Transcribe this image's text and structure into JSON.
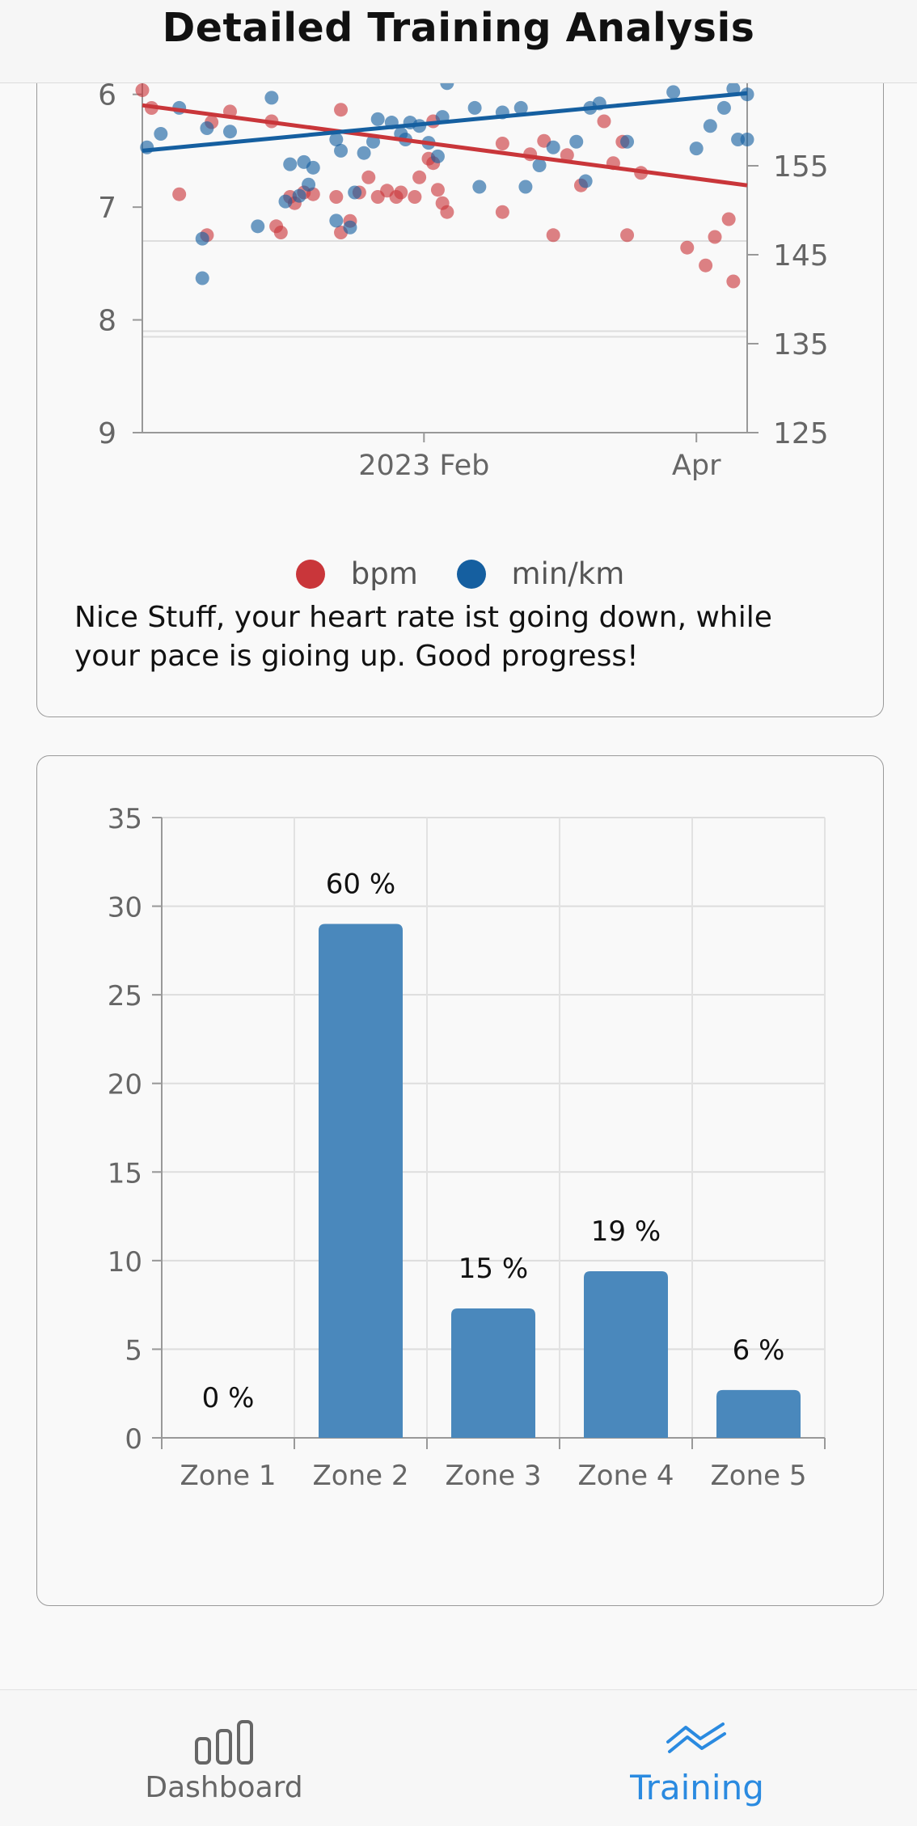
{
  "header": {
    "title": "Detailed Training Analysis"
  },
  "colors": {
    "bpm": "#c9363a",
    "pace": "#155fa0",
    "bar": "#4a88bc",
    "active_tab": "#2a8ae0"
  },
  "trend_card": {
    "legend": [
      {
        "label": "bpm",
        "color": "#c9363a"
      },
      {
        "label": "min/km",
        "color": "#155fa0"
      }
    ],
    "note": "Nice Stuff, your heart rate ist going down, while your pace is gioing up. Good progress!"
  },
  "zone_card": {},
  "chart_data": [
    {
      "type": "scatter",
      "x_ticks": [
        "2023 Feb",
        "Apr"
      ],
      "y_left_ticks": [
        "6",
        "7",
        "8",
        "9"
      ],
      "y_right_ticks": [
        "155",
        "145",
        "135",
        "125"
      ],
      "y_left_range": [
        5.45,
        9
      ],
      "y_right_range": [
        125,
        170
      ],
      "x_range": [
        "2022-12-02",
        "2023-04-12"
      ],
      "legend_placement": "bottom",
      "series": [
        {
          "name": "bpm",
          "axis": "right",
          "color": "#c9363a",
          "points": [
            [
              "2022-12-02",
              163.5
            ],
            [
              "2022-12-04",
              161.5
            ],
            [
              "2022-12-10",
              151.8
            ],
            [
              "2022-12-16",
              147.2
            ],
            [
              "2022-12-17",
              159.9
            ],
            [
              "2022-12-21",
              161.1
            ],
            [
              "2022-12-30",
              160.0
            ],
            [
              "2022-12-31",
              148.2
            ],
            [
              "2023-01-01",
              147.5
            ],
            [
              "2023-01-03",
              151.5
            ],
            [
              "2023-01-04",
              150.8
            ],
            [
              "2023-01-06",
              152.0
            ],
            [
              "2023-01-08",
              151.8
            ],
            [
              "2023-01-13",
              151.5
            ],
            [
              "2023-01-14",
              161.3
            ],
            [
              "2023-01-14",
              147.5
            ],
            [
              "2023-01-16",
              148.8
            ],
            [
              "2023-01-18",
              152.0
            ],
            [
              "2023-01-20",
              153.7
            ],
            [
              "2023-01-22",
              151.5
            ],
            [
              "2023-01-24",
              152.2
            ],
            [
              "2023-01-26",
              151.5
            ],
            [
              "2023-01-27",
              152.0
            ],
            [
              "2023-01-30",
              151.5
            ],
            [
              "2023-01-31",
              153.7
            ],
            [
              "2023-02-02",
              155.8
            ],
            [
              "2023-02-03",
              160.0
            ],
            [
              "2023-02-03",
              155.3
            ],
            [
              "2023-02-04",
              152.3
            ],
            [
              "2023-02-05",
              150.8
            ],
            [
              "2023-02-06",
              149.8
            ],
            [
              "2023-02-18",
              157.5
            ],
            [
              "2023-02-18",
              149.8
            ],
            [
              "2023-02-24",
              156.3
            ],
            [
              "2023-02-27",
              157.8
            ],
            [
              "2023-03-01",
              147.2
            ],
            [
              "2023-03-04",
              156.2
            ],
            [
              "2023-03-07",
              152.8
            ],
            [
              "2023-03-12",
              160.0
            ],
            [
              "2023-03-14",
              155.3
            ],
            [
              "2023-03-16",
              157.7
            ],
            [
              "2023-03-17",
              147.2
            ],
            [
              "2023-03-20",
              154.2
            ],
            [
              "2023-03-30",
              145.8
            ],
            [
              "2023-04-03",
              143.8
            ],
            [
              "2023-04-05",
              147.0
            ],
            [
              "2023-04-08",
              149.0
            ],
            [
              "2023-04-09",
              142.0
            ]
          ]
        },
        {
          "name": "min/km",
          "axis": "left",
          "color": "#155fa0",
          "points": [
            [
              "2022-12-03",
              6.47
            ],
            [
              "2022-12-06",
              6.35
            ],
            [
              "2022-12-10",
              6.12
            ],
            [
              "2022-12-13",
              5.78
            ],
            [
              "2022-12-15",
              7.28
            ],
            [
              "2022-12-15",
              7.63
            ],
            [
              "2022-12-16",
              6.3
            ],
            [
              "2022-12-18",
              5.77
            ],
            [
              "2022-12-21",
              6.33
            ],
            [
              "2022-12-27",
              7.17
            ],
            [
              "2022-12-30",
              6.03
            ],
            [
              "2023-01-02",
              6.95
            ],
            [
              "2023-01-03",
              6.62
            ],
            [
              "2023-01-05",
              6.9
            ],
            [
              "2023-01-06",
              6.6
            ],
            [
              "2023-01-07",
              6.8
            ],
            [
              "2023-01-08",
              6.65
            ],
            [
              "2023-01-13",
              7.12
            ],
            [
              "2023-01-13",
              6.4
            ],
            [
              "2023-01-14",
              6.5
            ],
            [
              "2023-01-16",
              7.18
            ],
            [
              "2023-01-17",
              6.87
            ],
            [
              "2023-01-19",
              6.52
            ],
            [
              "2023-01-21",
              6.42
            ],
            [
              "2023-01-22",
              6.22
            ],
            [
              "2023-01-25",
              6.25
            ],
            [
              "2023-01-27",
              6.35
            ],
            [
              "2023-01-28",
              6.4
            ],
            [
              "2023-01-29",
              6.25
            ],
            [
              "2023-01-31",
              6.28
            ],
            [
              "2023-02-02",
              6.43
            ],
            [
              "2023-02-04",
              6.55
            ],
            [
              "2023-02-05",
              6.2
            ],
            [
              "2023-02-06",
              5.9
            ],
            [
              "2023-02-12",
              6.12
            ],
            [
              "2023-02-13",
              6.82
            ],
            [
              "2023-02-18",
              6.16
            ],
            [
              "2023-02-22",
              6.12
            ],
            [
              "2023-02-23",
              6.82
            ],
            [
              "2023-02-26",
              6.63
            ],
            [
              "2023-03-01",
              6.47
            ],
            [
              "2023-03-06",
              6.42
            ],
            [
              "2023-03-08",
              6.77
            ],
            [
              "2023-03-09",
              6.12
            ],
            [
              "2023-03-11",
              6.08
            ],
            [
              "2023-03-17",
              6.42
            ],
            [
              "2023-03-27",
              5.98
            ],
            [
              "2023-04-01",
              6.48
            ],
            [
              "2023-04-04",
              6.28
            ],
            [
              "2023-04-07",
              6.12
            ],
            [
              "2023-04-09",
              5.95
            ],
            [
              "2023-04-10",
              6.4
            ],
            [
              "2023-04-12",
              6.0
            ],
            [
              "2023-04-12",
              6.4
            ]
          ]
        }
      ],
      "trendlines": [
        {
          "series": "bpm",
          "from": [
            "2022-12-02",
            161.8
          ],
          "to": [
            "2023-04-12",
            152.8
          ]
        },
        {
          "series": "min/km",
          "from": [
            "2022-12-02",
            6.5
          ],
          "to": [
            "2023-04-12",
            5.99
          ]
        }
      ]
    },
    {
      "type": "bar",
      "categories": [
        "Zone 1",
        "Zone 2",
        "Zone 3",
        "Zone 4",
        "Zone 5"
      ],
      "values": [
        0,
        29,
        7.3,
        9.4,
        2.7
      ],
      "data_labels": [
        "0 %",
        "60 %",
        "15 %",
        "19 %",
        "6 %"
      ],
      "y_ticks": [
        "0",
        "5",
        "10",
        "15",
        "20",
        "25",
        "30",
        "35"
      ],
      "ylim": [
        0,
        35
      ],
      "grid": true
    }
  ],
  "tabbar": {
    "items": [
      {
        "label": "Dashboard",
        "icon": "bar-chart-icon",
        "active": false
      },
      {
        "label": "Training",
        "icon": "trend-icon",
        "active": true
      }
    ]
  }
}
